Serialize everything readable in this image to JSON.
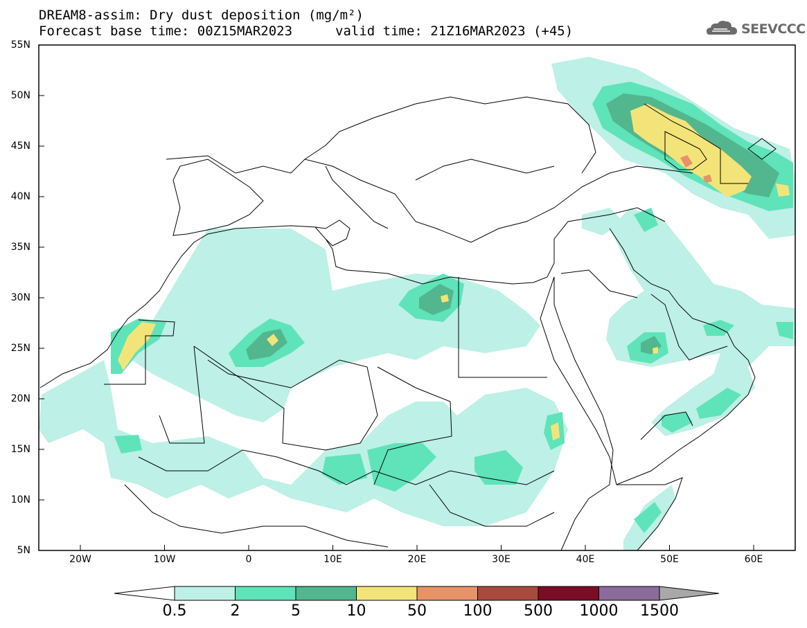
{
  "header": {
    "title": "DREAM8-assim: Dry dust deposition (mg/m²)",
    "forecast_base": "Forecast base time: 00Z15MAR2023",
    "valid_time": "valid time: 21Z16MAR2023 (+45)"
  },
  "logo": {
    "text": "SEEVCCC",
    "icon": "cloud-logo-icon"
  },
  "axes": {
    "lat_labels": [
      "55N",
      "50N",
      "45N",
      "40N",
      "35N",
      "30N",
      "25N",
      "20N",
      "15N",
      "10N",
      "5N"
    ],
    "lon_labels": [
      "20W",
      "10W",
      "0",
      "10E",
      "20E",
      "30E",
      "40E",
      "50E",
      "60E"
    ]
  },
  "colorbar": {
    "labels": [
      "0.5",
      "2",
      "5",
      "10",
      "50",
      "100",
      "500",
      "1000",
      "1500"
    ],
    "colors": [
      "#bdf0e6",
      "#5fe3b9",
      "#52b68f",
      "#f3e479",
      "#e89267",
      "#a84a3e",
      "#7a0c25",
      "#8b6a9c",
      "#a8a8a8"
    ],
    "left_arrow_color": "#ffffff",
    "right_arrow_color": "#a8a8a8"
  }
}
